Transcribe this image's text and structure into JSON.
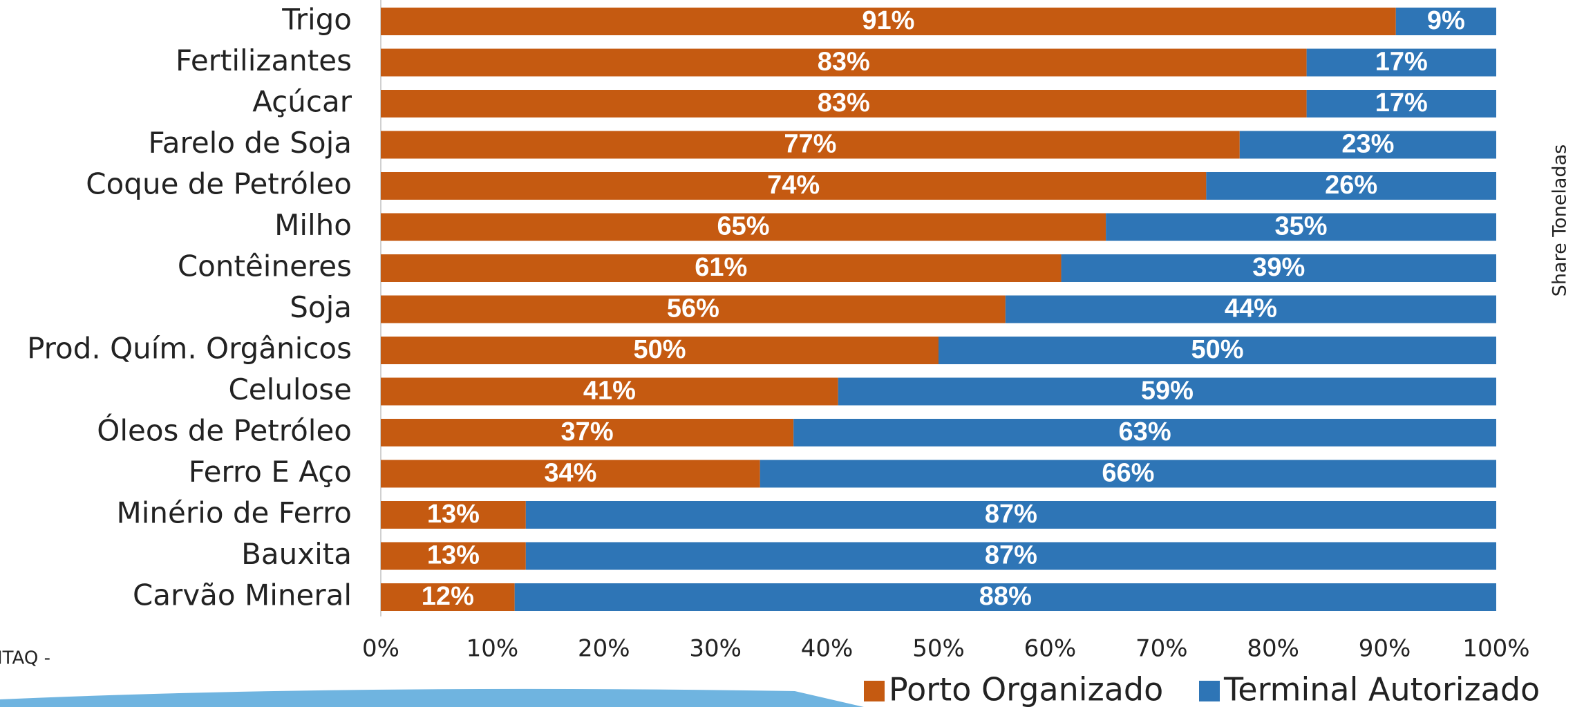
{
  "chart_data": {
    "type": "stacked_bar_horizontal",
    "categories": [
      "Trigo",
      "Fertilizantes",
      "Açúcar",
      "Farelo de Soja",
      "Coque de Petróleo",
      "Milho",
      "Contêineres",
      "Soja",
      "Prod. Quím. Orgânicos",
      "Celulose",
      "Óleos de Petróleo",
      "Ferro E Aço",
      "Minério de Ferro",
      "Bauxita",
      "Carvão Mineral"
    ],
    "series": [
      {
        "name": "Porto Organizado",
        "color": "#c55a11",
        "values": [
          91,
          83,
          83,
          77,
          74,
          65,
          61,
          56,
          50,
          41,
          37,
          34,
          13,
          13,
          12
        ],
        "value_labels": [
          "91%",
          "83%",
          "83%",
          "77%",
          "74%",
          "65%",
          "61%",
          "56%",
          "50%",
          "41%",
          "37%",
          "34%",
          "13%",
          "13%",
          "12%"
        ]
      },
      {
        "name": "Terminal Autorizado",
        "color": "#2e75b6",
        "values": [
          9,
          17,
          17,
          23,
          26,
          35,
          39,
          44,
          50,
          59,
          63,
          66,
          87,
          87,
          88
        ],
        "value_labels": [
          "9%",
          "17%",
          "17%",
          "23%",
          "26%",
          "35%",
          "39%",
          "44%",
          "50%",
          "59%",
          "63%",
          "66%",
          "87%",
          "87%",
          "88%"
        ]
      }
    ],
    "xlim": [
      0,
      100
    ],
    "xticks": [
      {
        "value": 0,
        "label": "0%"
      },
      {
        "value": 10,
        "label": "10%"
      },
      {
        "value": 20,
        "label": "20%"
      },
      {
        "value": 30,
        "label": "30%"
      },
      {
        "value": 40,
        "label": "40%"
      },
      {
        "value": 50,
        "label": "50%"
      },
      {
        "value": 60,
        "label": "60%"
      },
      {
        "value": 70,
        "label": "70%"
      },
      {
        "value": 80,
        "label": "80%"
      },
      {
        "value": 90,
        "label": "90%"
      },
      {
        "value": 100,
        "label": "100%"
      }
    ],
    "y_axis_label_right": "Share Toneladas",
    "source_fragment": "ITAQ -",
    "legend": "bottom-right"
  }
}
